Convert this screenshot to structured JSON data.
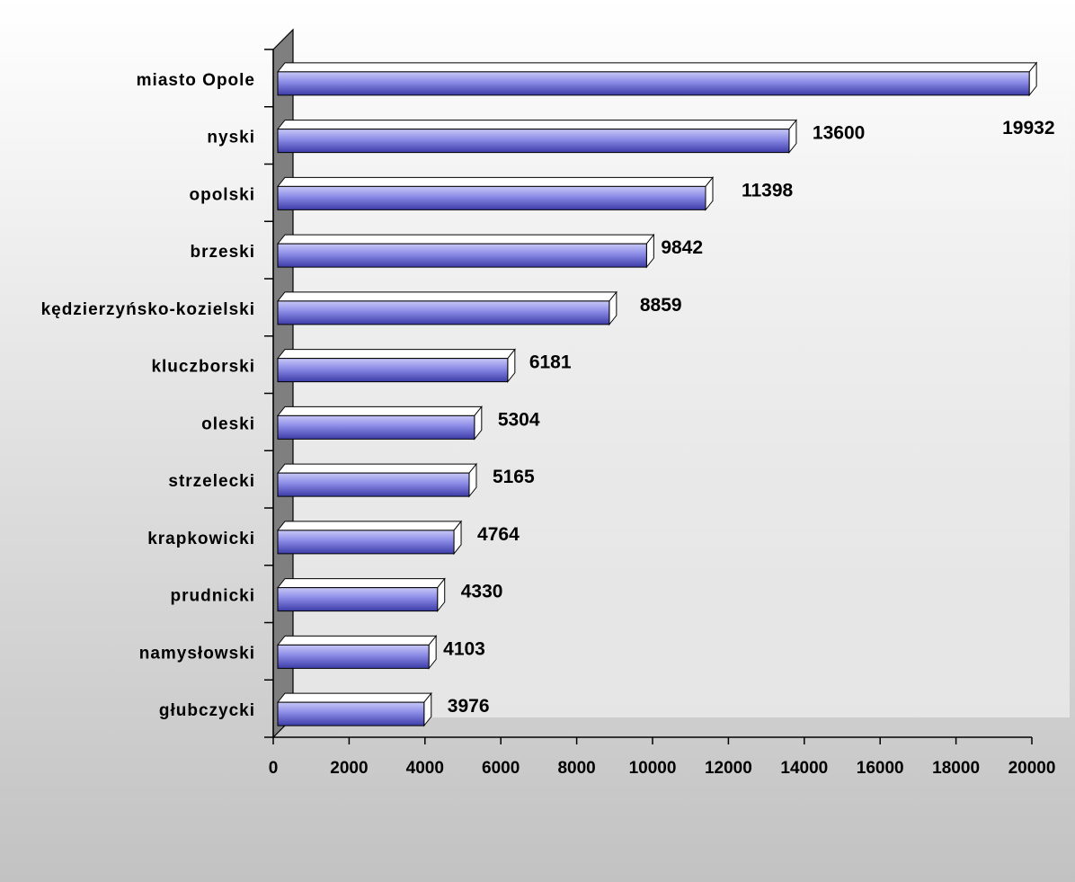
{
  "chart_data": {
    "type": "bar",
    "orientation": "horizontal",
    "style": "3d",
    "title": "",
    "xlabel": "",
    "ylabel": "",
    "categories": [
      "miasto Opole",
      "nyski",
      "opolski",
      "brzeski",
      "kędzierzyńsko-kozielski",
      "kluczborski",
      "oleski",
      "strzelecki",
      "krapkowicki",
      "prudnicki",
      "namysłowski",
      "głubczycki"
    ],
    "values": [
      19932,
      13600,
      11398,
      9842,
      8859,
      6181,
      5304,
      5165,
      4764,
      4330,
      4103,
      3976
    ],
    "value_labels": [
      "19932",
      "13600",
      "11398",
      "9842",
      "8859",
      "6181",
      "5304",
      "5165",
      "4764",
      "4330",
      "4103",
      "3976"
    ],
    "xlim": [
      0,
      20000
    ],
    "xticks": [
      0,
      2000,
      4000,
      6000,
      8000,
      10000,
      12000,
      14000,
      16000,
      18000,
      20000
    ],
    "xtick_labels": [
      "0",
      "2000",
      "4000",
      "6000",
      "8000",
      "10000",
      "12000",
      "14000",
      "16000",
      "18000",
      "20000"
    ],
    "grid": false,
    "legend": "none",
    "colors": {
      "bar_light": "#b4b4f0",
      "bar_mid": "#7878dc",
      "bar_dark": "#3c3ca0",
      "wall": "#7f7f7f",
      "plot_floor": "#e6e6e6",
      "bar_top": "#ffffff"
    }
  }
}
